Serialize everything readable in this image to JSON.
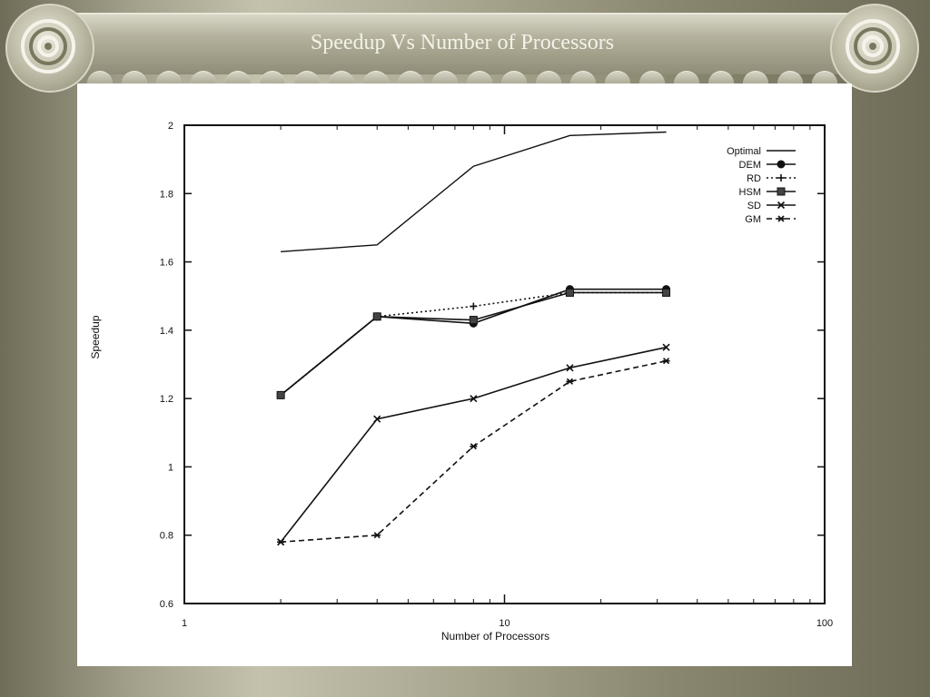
{
  "slide": {
    "title": "Speedup Vs Number of Processors"
  },
  "chart_data": {
    "type": "line",
    "xscale": "log",
    "xlim": [
      1,
      100
    ],
    "ylim": [
      0.6,
      2
    ],
    "xlabel": "Number of Processors",
    "ylabel": "Speedup",
    "xticks": [
      1,
      10,
      100
    ],
    "xtick_labels": [
      "1",
      "10",
      "100"
    ],
    "yticks": [
      0.6,
      0.8,
      1,
      1.2,
      1.4,
      1.6,
      1.8,
      2
    ],
    "ytick_labels": [
      "0.6",
      "0.8",
      "1",
      "1.2",
      "1.4",
      "1.6",
      "1.8",
      "2"
    ],
    "grid": false,
    "legend_position": "top-right",
    "x": [
      2,
      4,
      8,
      16,
      32
    ],
    "series": [
      {
        "name": "Optimal",
        "marker": "none",
        "dash": "solid",
        "values": [
          1.63,
          1.65,
          1.88,
          1.97,
          1.98
        ]
      },
      {
        "name": "DEM",
        "marker": "dot",
        "dash": "solid",
        "values": [
          1.21,
          1.44,
          1.42,
          1.52,
          1.52
        ]
      },
      {
        "name": "RD",
        "marker": "plus",
        "dash": "dotted",
        "values": [
          1.21,
          1.44,
          1.47,
          1.51,
          1.51
        ]
      },
      {
        "name": "HSM",
        "marker": "square",
        "dash": "solid",
        "values": [
          1.21,
          1.44,
          1.43,
          1.51,
          1.51
        ]
      },
      {
        "name": "SD",
        "marker": "x",
        "dash": "solid",
        "values": [
          0.78,
          1.14,
          1.2,
          1.29,
          1.35
        ]
      },
      {
        "name": "GM",
        "marker": "star",
        "dash": "dashed",
        "values": [
          0.78,
          0.8,
          1.06,
          1.25,
          1.31
        ]
      }
    ]
  }
}
